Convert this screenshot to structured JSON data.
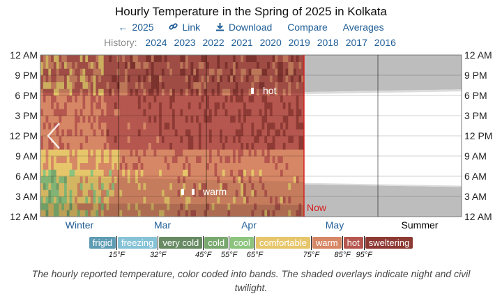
{
  "header": {
    "title": "Hourly Temperature in the Spring of 2025 in Kolkata",
    "nav": [
      {
        "icon": "arrow-left-icon",
        "glyph": "←",
        "label": "2025"
      },
      {
        "icon": "link-icon",
        "glyph": "🔗",
        "label": "Link"
      },
      {
        "icon": "download-icon",
        "glyph": "⤓",
        "label": "Download"
      },
      {
        "icon": "",
        "glyph": "",
        "label": "Compare"
      },
      {
        "icon": "",
        "glyph": "",
        "label": "Averages"
      }
    ],
    "history_label": "History:",
    "history_years": [
      "2024",
      "2023",
      "2022",
      "2021",
      "2020",
      "2019",
      "2018",
      "2017",
      "2016"
    ]
  },
  "chart_data": {
    "type": "heatmap",
    "title": "Hourly Temperature in the Spring of 2025 in Kolkata",
    "y_ticks": [
      "12 AM",
      "3 AM",
      "6 AM",
      "9 AM",
      "12 PM",
      "3 PM",
      "6 PM",
      "9 PM",
      "12 AM"
    ],
    "x_ticks": [
      {
        "label": "Winter",
        "color": "#1f5d96"
      },
      {
        "label": "Mar",
        "color": "#1f5d96"
      },
      {
        "label": "Apr",
        "color": "#1f5d96"
      },
      {
        "label": "May",
        "color": "#1f5d96"
      },
      {
        "label": "Summer",
        "color": "#000000"
      }
    ],
    "now_label": "Now",
    "annotations": [
      {
        "label": "hot"
      },
      {
        "label": "warm"
      }
    ],
    "band_colors": {
      "frigid": "#5e9cb3",
      "freezing": "#86c3d6",
      "very cold": "#678a63",
      "cold": "#79a86e",
      "cool": "#8cc47e",
      "comfortable": "#e7c66b",
      "warm": "#d68765",
      "hot": "#b5574f",
      "sweltering": "#8e3a34"
    }
  },
  "legend": {
    "bands": [
      {
        "label": "frigid",
        "color": "#5e9cb3"
      },
      {
        "label": "freezing",
        "color": "#86c3d6"
      },
      {
        "label": "very cold",
        "color": "#678a63"
      },
      {
        "label": "cold",
        "color": "#79a86e"
      },
      {
        "label": "cool",
        "color": "#8cc47e"
      },
      {
        "label": "comfortable",
        "color": "#e7c66b"
      },
      {
        "label": "warm",
        "color": "#d68765"
      },
      {
        "label": "hot",
        "color": "#b5574f"
      },
      {
        "label": "sweltering",
        "color": "#8e3a34"
      }
    ],
    "thresholds": [
      "15°F",
      "32°F",
      "45°F",
      "55°F",
      "65°F",
      "75°F",
      "85°F",
      "95°F"
    ]
  },
  "caption": "The hourly reported temperature, color coded into bands. The shaded overlays indicate night and civil twilight."
}
